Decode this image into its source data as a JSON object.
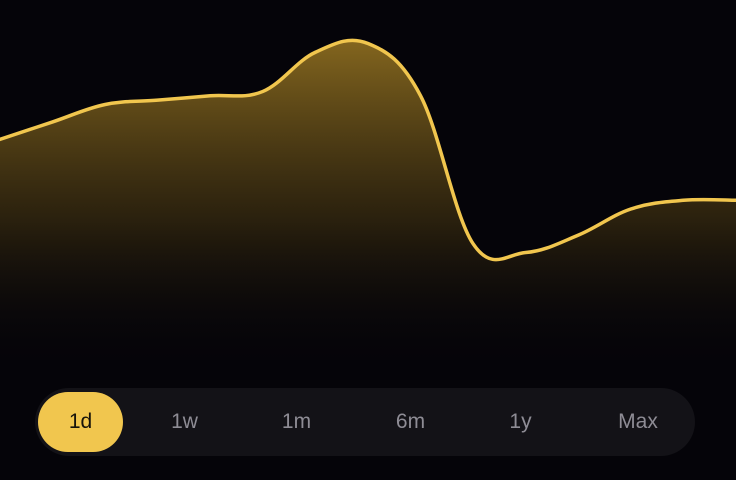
{
  "colors": {
    "background": "#050409",
    "line": "#f1c64e",
    "fill_top": "#9a7722",
    "selector_bg": "#131217",
    "active_pill": "#f1c64e",
    "inactive_text": "#8e8c95",
    "active_text": "#17130a"
  },
  "chart_data": {
    "type": "area",
    "title": "",
    "xlabel": "",
    "ylabel": "",
    "x": [
      0,
      1,
      2,
      3,
      4,
      5,
      6,
      7,
      8,
      9,
      10,
      11,
      12,
      13,
      14
    ],
    "values": [
      3.2,
      3.4,
      3.6,
      3.65,
      3.7,
      3.75,
      4.2,
      4.3,
      3.7,
      2.0,
      1.9,
      2.1,
      2.4,
      2.5,
      2.5
    ],
    "ylim": [
      0,
      4.8
    ],
    "grid": false,
    "legend": "none",
    "selected_range": "1d"
  },
  "range_selector": {
    "options": [
      {
        "id": "1d",
        "label": "1d",
        "active": true
      },
      {
        "id": "1w",
        "label": "1w",
        "active": false
      },
      {
        "id": "1m",
        "label": "1m",
        "active": false
      },
      {
        "id": "6m",
        "label": "6m",
        "active": false
      },
      {
        "id": "1y",
        "label": "1y",
        "active": false
      },
      {
        "id": "max",
        "label": "Max",
        "active": false
      }
    ]
  }
}
